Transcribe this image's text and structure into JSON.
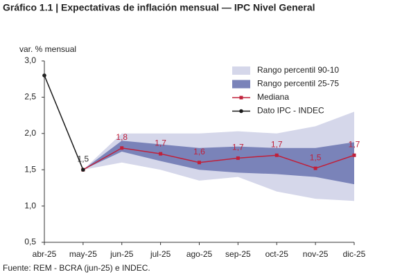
{
  "chart_data": {
    "type": "line",
    "title": "Gráfico 1.1 | Expectativas de inflación mensual — IPC Nivel General",
    "y_label": "var. % mensual",
    "source": "Fuente: REM - BCRA (jun-25) e INDEC.",
    "categories": [
      "abr-25",
      "may-25",
      "jun-25",
      "jul-25",
      "ago-25",
      "sep-25",
      "oct-25",
      "nov-25",
      "dic-25"
    ],
    "ylim": [
      0.5,
      3.0
    ],
    "yticks": [
      {
        "value": 0.5,
        "label": "0,5"
      },
      {
        "value": 1.0,
        "label": "1,0"
      },
      {
        "value": 1.5,
        "label": "1,5"
      },
      {
        "value": 2.0,
        "label": "2,0"
      },
      {
        "value": 2.5,
        "label": "2,5"
      },
      {
        "value": 3.0,
        "label": "3,0"
      }
    ],
    "legend": "upper right",
    "series": [
      {
        "name": "Rango percentil 90-10",
        "color": "#d5d7ea",
        "low": [
          null,
          1.5,
          1.6,
          1.5,
          1.35,
          1.4,
          1.2,
          1.1,
          1.07
        ],
        "high": [
          null,
          1.5,
          2.0,
          2.0,
          2.0,
          2.03,
          2.0,
          2.1,
          2.3
        ]
      },
      {
        "name": "Rango percentil 25-75",
        "color": "#7a83b9",
        "low": [
          null,
          1.5,
          1.75,
          1.62,
          1.5,
          1.46,
          1.44,
          1.4,
          1.3
        ],
        "high": [
          null,
          1.5,
          1.9,
          1.85,
          1.8,
          1.82,
          1.8,
          1.8,
          1.88
        ]
      },
      {
        "name": "Mediana",
        "color": "#c0203a",
        "values": [
          null,
          1.5,
          1.8,
          1.72,
          1.6,
          1.66,
          1.7,
          1.52,
          1.7
        ],
        "value_labels": [
          null,
          "1,5",
          "1,8",
          "1,7",
          "1,6",
          "1,7",
          "1,7",
          "1,5",
          "1,7"
        ]
      },
      {
        "name": "Dato IPC - INDEC",
        "color": "#1a1a1a",
        "values": [
          2.8,
          1.5,
          null,
          null,
          null,
          null,
          null,
          null,
          null
        ]
      }
    ]
  }
}
